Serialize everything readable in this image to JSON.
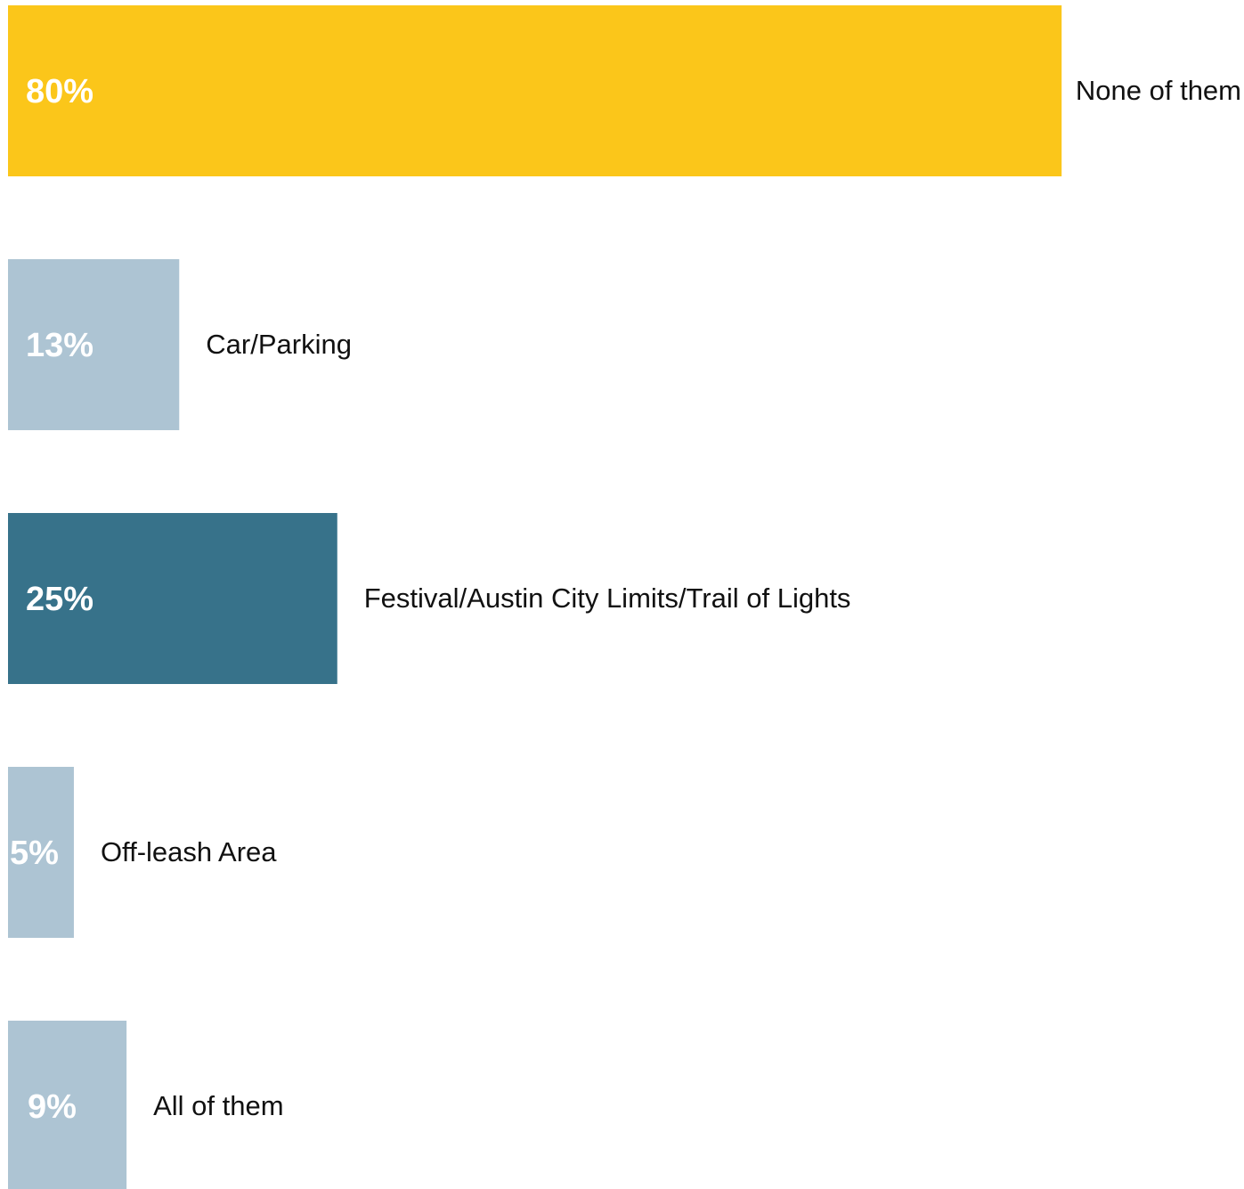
{
  "chart_data": {
    "type": "bar",
    "orientation": "horizontal",
    "unit": "%",
    "grid": false,
    "legend": "none",
    "bars": [
      {
        "category": "None of them",
        "value": 80,
        "value_label": "80%",
        "color": "#FBC61A"
      },
      {
        "category": "Car/Parking",
        "value": 13,
        "value_label": "13%",
        "color": "#ADC4D3"
      },
      {
        "category": "Festival/Austin City Limits/Trail of Lights",
        "value": 25,
        "value_label": "25%",
        "color": "#37728A"
      },
      {
        "category": "Off-leash Area",
        "value": 5,
        "value_label": "5%",
        "color": "#ADC4D3"
      },
      {
        "category": "All of them",
        "value": 9,
        "value_label": "9%",
        "color": "#ADC4D3"
      }
    ]
  }
}
